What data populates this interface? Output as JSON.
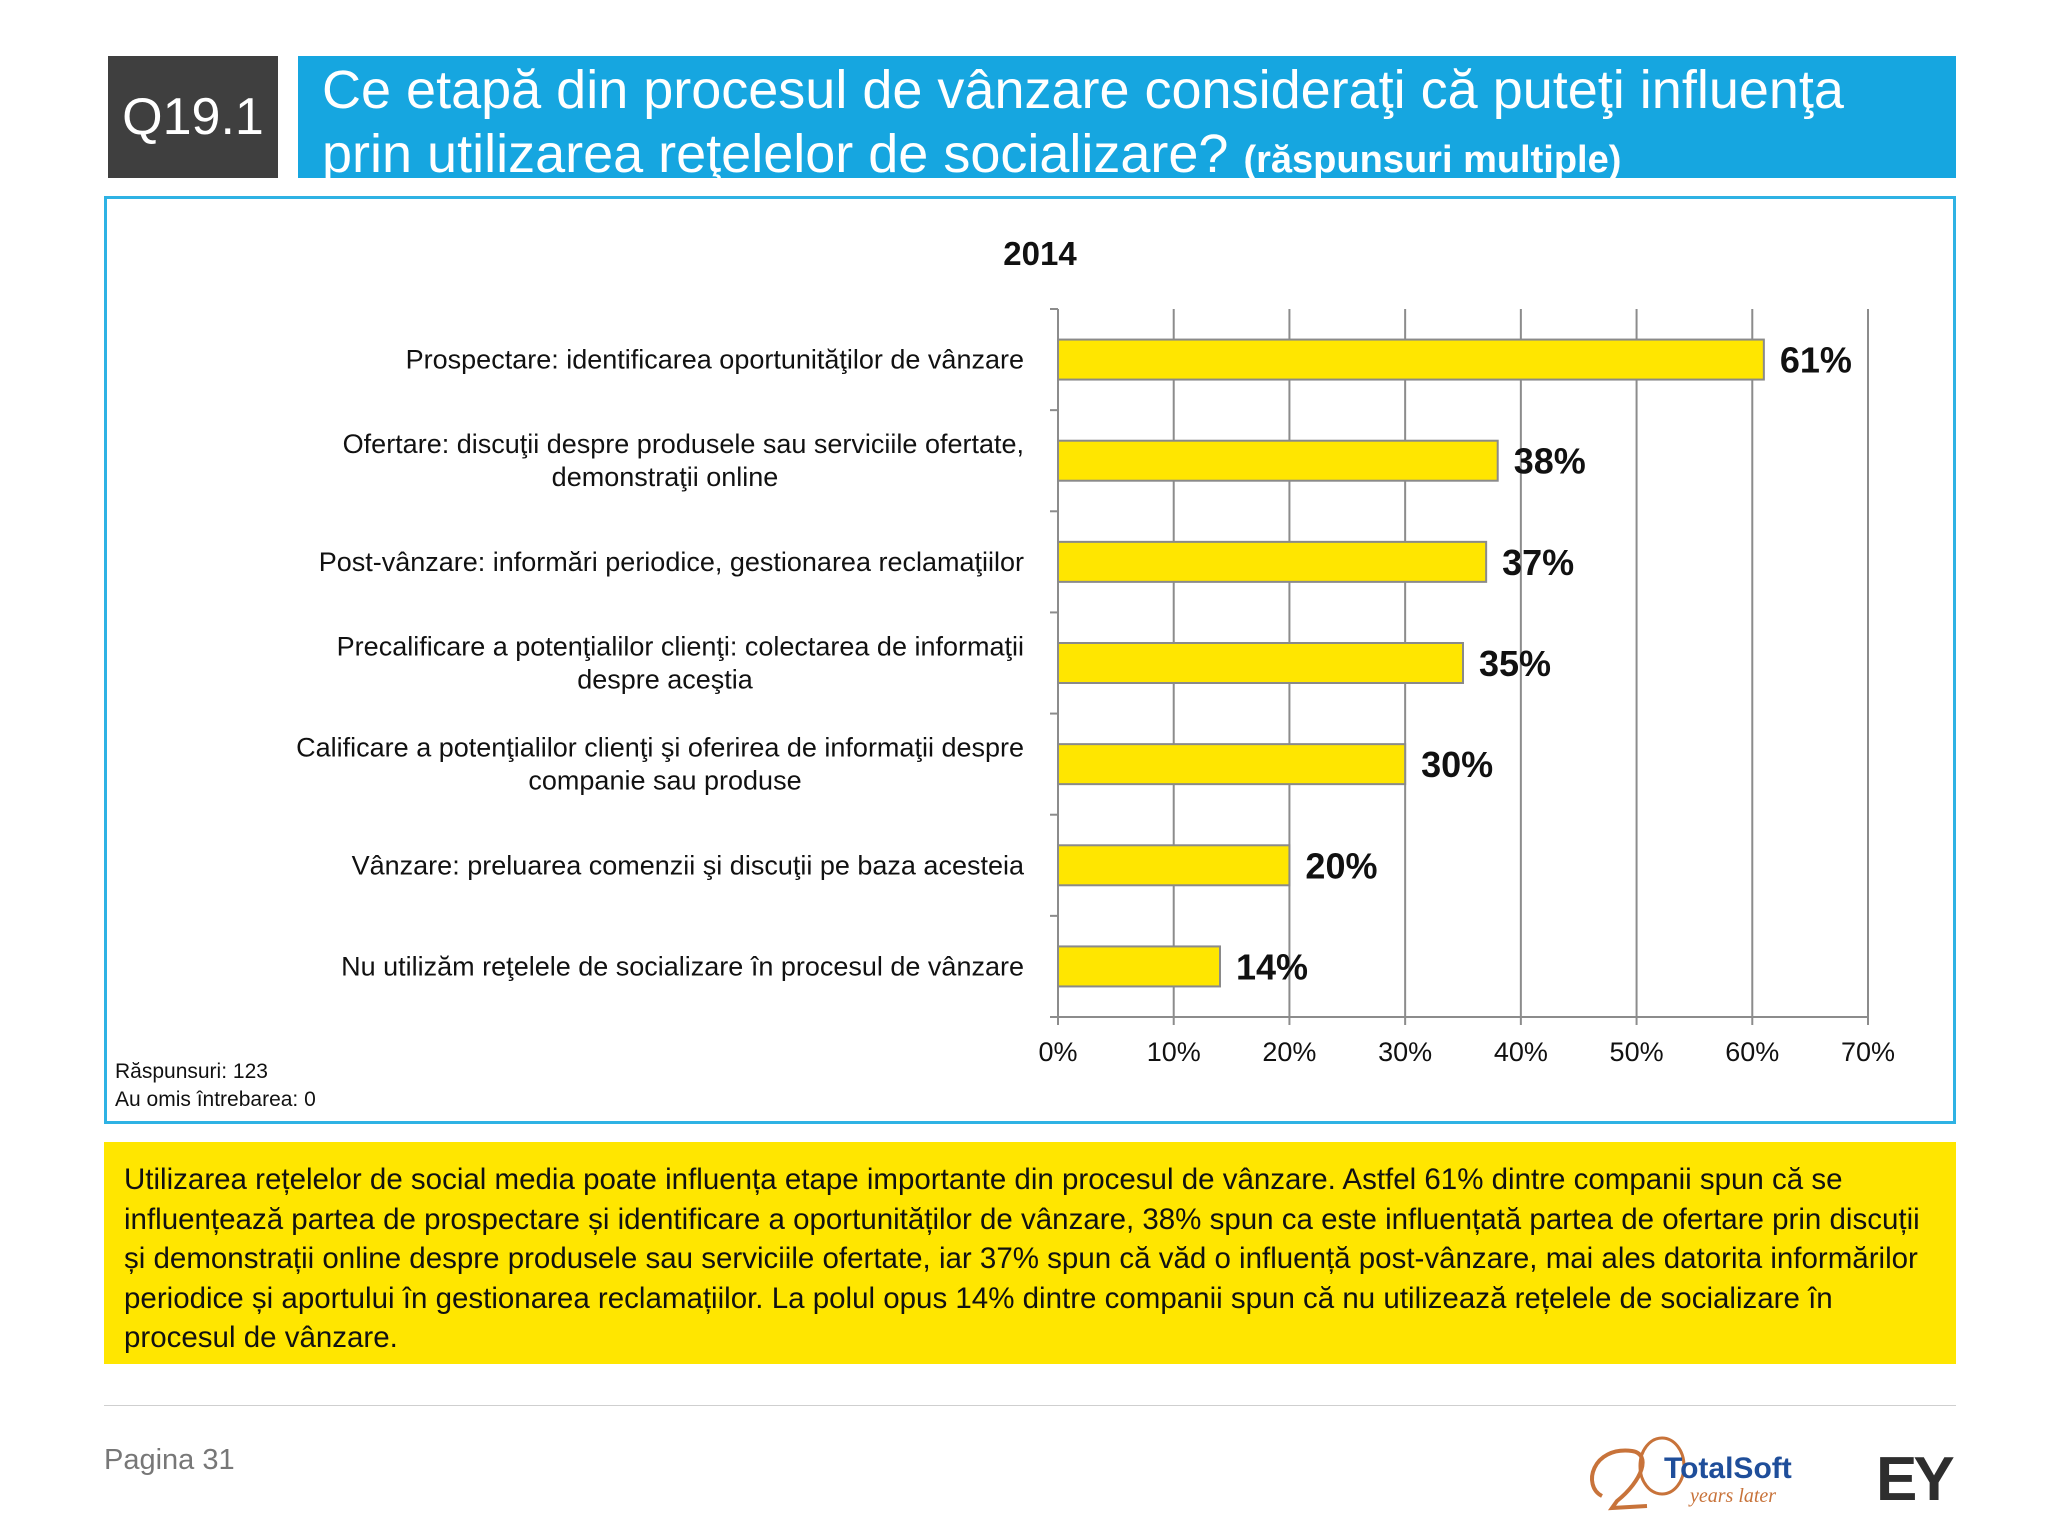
{
  "header": {
    "question_code": "Q19.1",
    "title_line1": "Ce etapă din procesul de vânzare consideraţi că puteţi influenţa",
    "title_line2": "prin utilizarea reţelelor de socializare?",
    "title_sub": "(răspunsuri multiple)"
  },
  "chart_data": {
    "type": "bar",
    "orientation": "horizontal",
    "title": "2014",
    "categories": [
      [
        "Prospectare: identificarea oportunităţilor de vânzare"
      ],
      [
        "Ofertare: discuţii despre produsele sau serviciile ofertate,",
        "demonstraţii online"
      ],
      [
        "Post-vânzare: informări periodice, gestionarea reclamaţiilor"
      ],
      [
        "Precalificare a potenţialilor clienţi: colectarea de informaţii",
        "despre aceştia"
      ],
      [
        "Calificare a potenţialilor clienţi şi oferirea de informaţii despre",
        "companie sau produse"
      ],
      [
        "Vânzare: preluarea comenzii şi discuţii pe baza acesteia"
      ],
      [
        "Nu utilizăm reţelele de socializare în procesul de vânzare"
      ]
    ],
    "values": [
      61,
      38,
      37,
      35,
      30,
      20,
      14
    ],
    "value_labels": [
      "61%",
      "38%",
      "37%",
      "35%",
      "30%",
      "20%",
      "14%"
    ],
    "xlim": [
      0,
      70
    ],
    "x_ticks": [
      "0%",
      "10%",
      "20%",
      "30%",
      "40%",
      "50%",
      "60%",
      "70%"
    ],
    "grid": "vertical",
    "bar_color": "#ffe600",
    "bar_border": "#8a8a8a",
    "notes": [
      "Răspunsuri: 123",
      "Au omis întrebarea: 0"
    ]
  },
  "summary": "Utilizarea rețelelor de social media poate influența etape importante din procesul de vânzare. Astfel 61% dintre companii spun că se influențează partea de prospectare și identificare a oportunităților de vânzare, 38% spun ca este influențată partea de ofertare prin discuții și demonstrații online despre produsele sau serviciile ofertate, iar 37% spun că văd o influență post-vânzare, mai ales datorita informărilor periodice și aportului în gestionarea reclamațiilor. La polul opus 14% dintre companii spun că nu utilizează rețelele de socializare în procesul de vânzare.",
  "footer": {
    "page_label": "Pagina 31",
    "logo_totalsoft": "TotalSoft",
    "logo_totalsoft_tagline": "years later",
    "logo_ey": "EY"
  },
  "colors": {
    "title_bar": "#16a6e0",
    "question_box": "#3f3f3f",
    "summary_bg": "#ffe600",
    "frame": "#2eb2e4"
  }
}
